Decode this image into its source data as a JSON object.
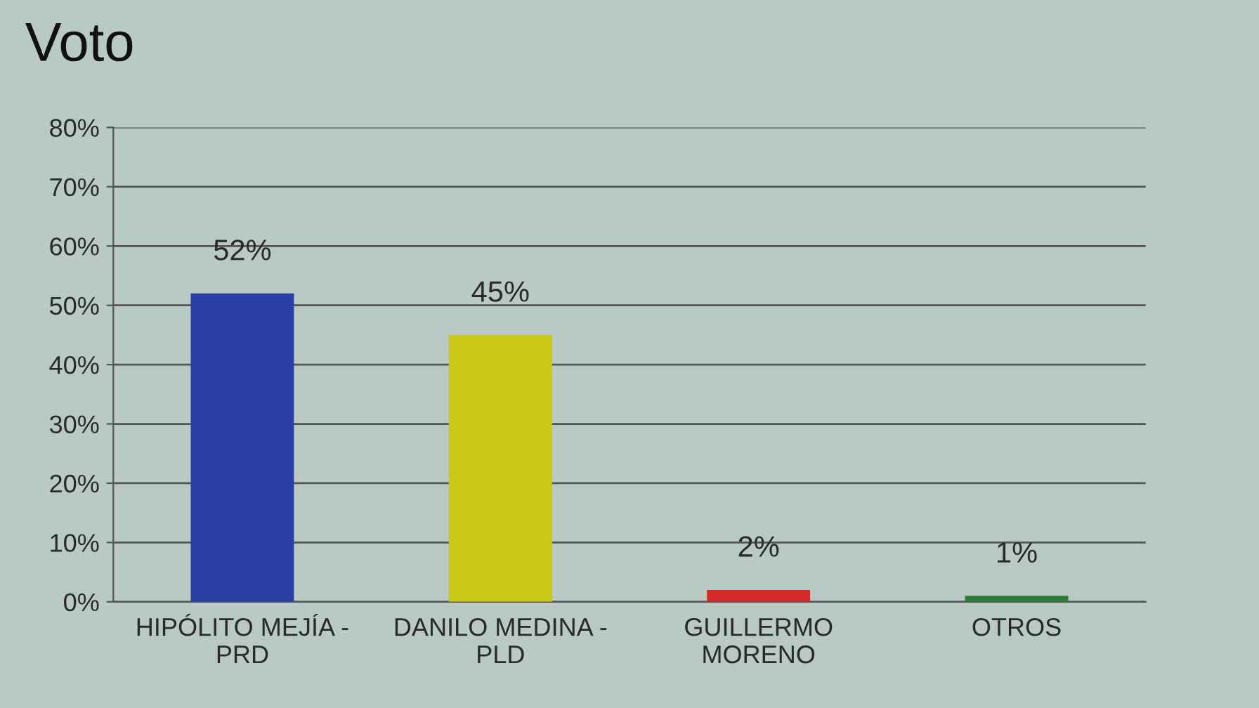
{
  "chart_data": {
    "type": "bar",
    "title": "Voto",
    "categories": [
      "HIPÓLITO MEJÍA - PRD",
      "DANILO MEDINA - PLD",
      "GUILLERMO MORENO",
      "OTROS"
    ],
    "values": [
      52,
      45,
      2,
      1
    ],
    "value_labels": [
      "52%",
      "45%",
      "2%",
      "1%"
    ],
    "colors": [
      "#2b40a6",
      "#c9c814",
      "#d62b2b",
      "#2f7a35"
    ],
    "ylim": [
      0,
      80
    ],
    "yticks": [
      {
        "value": 0,
        "label": "0%"
      },
      {
        "value": 10,
        "label": "10%"
      },
      {
        "value": 20,
        "label": "20%"
      },
      {
        "value": 30,
        "label": "30%"
      },
      {
        "value": 40,
        "label": "40%"
      },
      {
        "value": 50,
        "label": "50%"
      },
      {
        "value": 60,
        "label": "60%"
      },
      {
        "value": 70,
        "label": "70%"
      },
      {
        "value": 80,
        "label": "80%"
      }
    ],
    "grid": "y",
    "legend": false
  }
}
